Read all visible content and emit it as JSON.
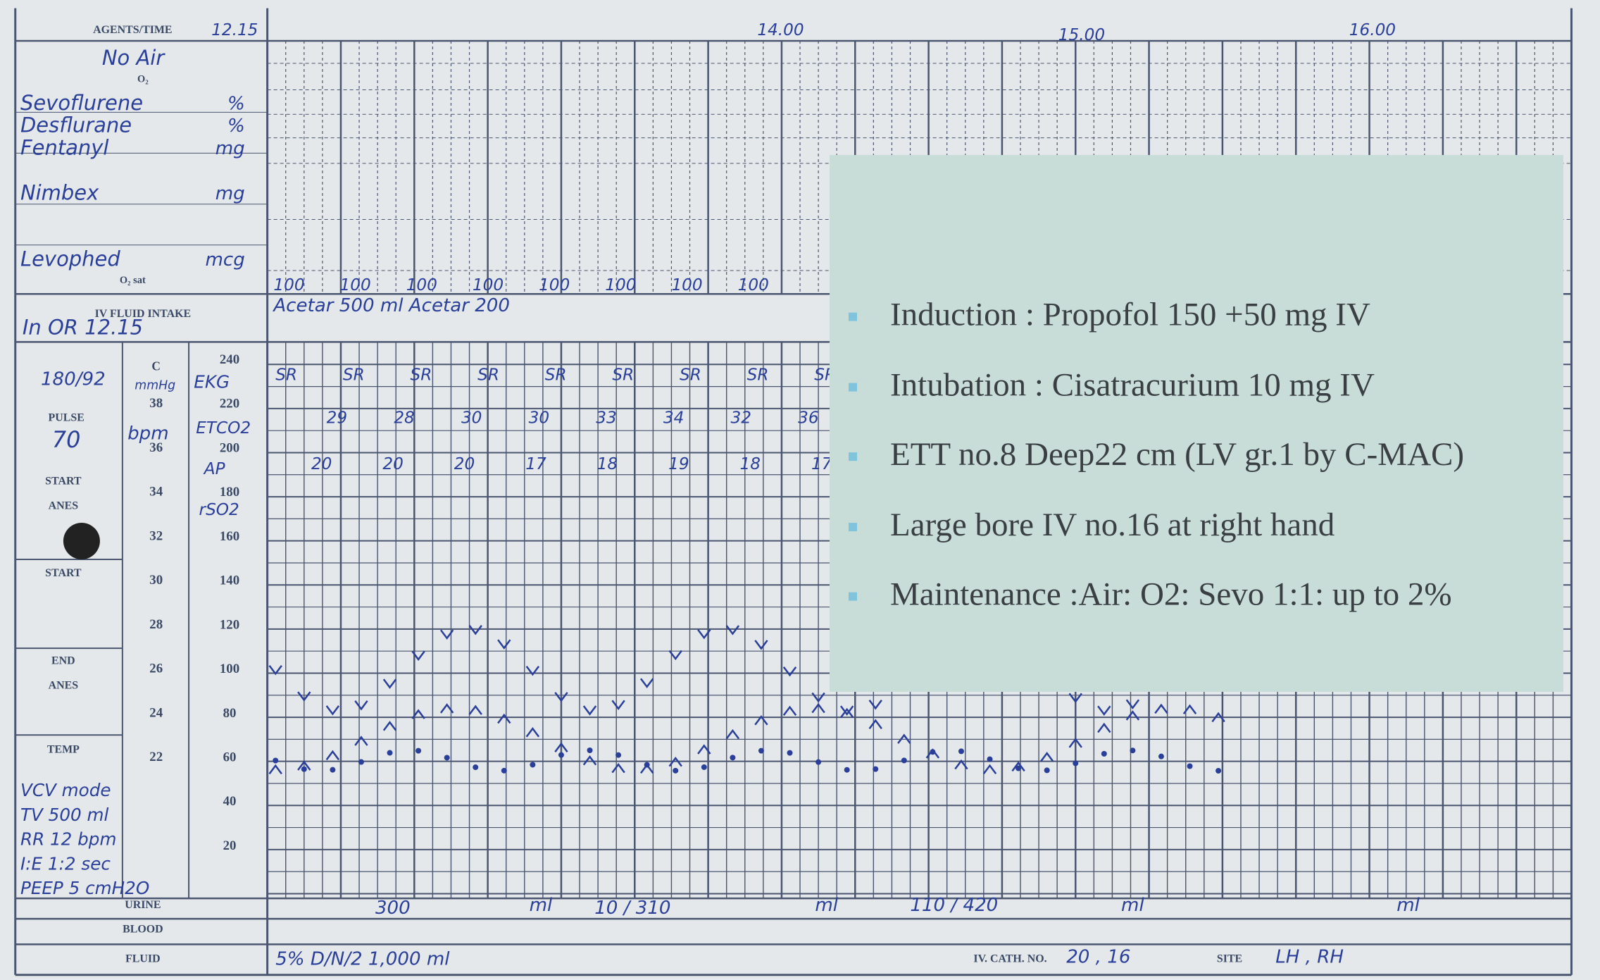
{
  "form": {
    "agents_time": "AGENTS/TIME",
    "o2": "O₂",
    "o2sat": "O₂ sat",
    "iv_fluid_intake": "IV FLUID INTAKE",
    "pulse": "PULSE",
    "start_anes": [
      "START",
      "ANES"
    ],
    "start": "START",
    "end_anes": [
      "END",
      "ANES"
    ],
    "temp": "TEMP",
    "urine": "URINE",
    "blood": "BLOOD",
    "fluid": "FLUID",
    "iv_cath_no": "IV. CATH. NO.",
    "site": "SITE",
    "unit_c": "C",
    "unit_mmhg": "mmHg"
  },
  "scale": {
    "mmhg": [
      240,
      220,
      200,
      180,
      160,
      140,
      120,
      100,
      80,
      60,
      40,
      20
    ],
    "celsius": [
      38,
      36,
      34,
      32,
      30,
      28,
      26,
      24,
      22
    ]
  },
  "times": [
    "12.15",
    "14.00",
    "15.00",
    "16.00"
  ],
  "agents": [
    {
      "name": "No Air",
      "unit": ""
    },
    {
      "name": "Sevoflurene",
      "unit": "%"
    },
    {
      "name": "Desflurane",
      "unit": "%"
    },
    {
      "name": "Fentanyl",
      "unit": "mg"
    },
    {
      "name": "Nimbex",
      "unit": "mg"
    },
    {
      "name": "Levophed",
      "unit": "mcg"
    }
  ],
  "handwritten": {
    "in_or": "In OR 12.15",
    "bp": "180/92",
    "pulse_value": "70",
    "ekg": "EKG",
    "etco2": "ETCO2",
    "ap": "AP",
    "rso2": "rSO2",
    "bpm": "bpm",
    "fluid_top": "Acetar 500 ml  Acetar 200",
    "vent": [
      "VCV mode",
      "TV 500 ml",
      "RR 12 bpm",
      "I:E 1:2 sec",
      "PEEP 5 cmH2O"
    ],
    "urine_values": [
      "300",
      "ml",
      "10 / 310",
      "ml",
      "110 / 420",
      "ml",
      "ml"
    ],
    "fluid": "5% D/N/2 1,000 ml",
    "iv_cath": "20 , 16",
    "site": "LH , RH",
    "rhythm": [
      "SR",
      "SR",
      "SR",
      "SR",
      "SR",
      "SR",
      "SR",
      "SR",
      "SR"
    ],
    "etco2_values": [
      "29",
      "28",
      "30",
      "30",
      "33",
      "34",
      "32",
      "36"
    ],
    "rso2_values": [
      "20",
      "20",
      "20",
      "17",
      "18",
      "19",
      "18",
      "17"
    ],
    "sat": [
      "100",
      "100",
      "100",
      "100",
      "100",
      "100",
      "100",
      "100"
    ]
  },
  "overlay": {
    "bullets": [
      "Induction : Propofol 150 +50 mg IV",
      "Intubation : Cisatracurium 10 mg IV",
      "ETT no.8  Deep22 cm (LV gr.1 by C-MAC)",
      "Large bore IV no.16  at right hand",
      "Maintenance :Air: O2: Sevo 1:1: up to 2%"
    ]
  }
}
